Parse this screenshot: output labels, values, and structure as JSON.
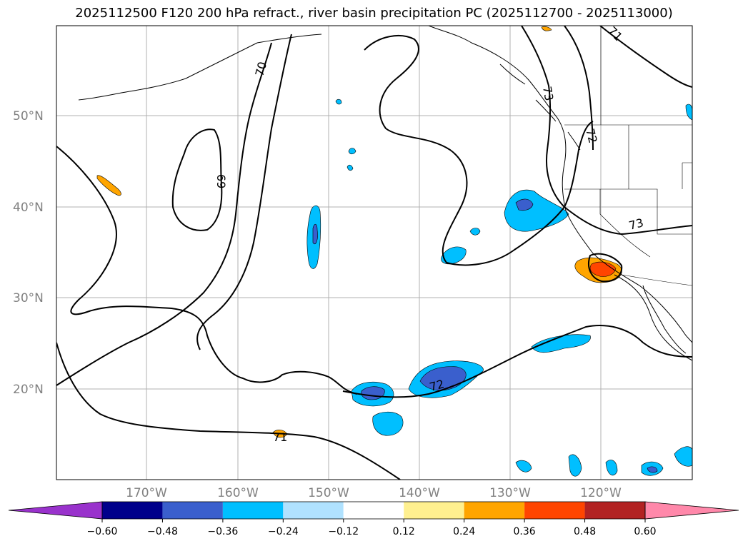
{
  "title": "2025112500 F120 200 hPa refract., river basin precipitation PC (2025112700 - 2025113000)",
  "latitudes": [
    "50°N",
    "40°N",
    "30°N",
    "20°N"
  ],
  "longitudes": [
    "170°W",
    "160°W",
    "150°W",
    "140°W",
    "130°W",
    "120°W"
  ],
  "contour_labels": [
    "70",
    "69",
    "71",
    "72",
    "73",
    "73",
    "72",
    "71"
  ],
  "colorbar": {
    "ticks": [
      "−0.60",
      "−0.48",
      "−0.36",
      "−0.24",
      "−0.12",
      "0.12",
      "0.24",
      "0.36",
      "0.48",
      "0.60"
    ],
    "colors": [
      "#9932cc",
      "#00008b",
      "#3a5fcd",
      "#00bfff",
      "#b0e2ff",
      "#ffffff",
      "#fff08f",
      "#ffa500",
      "#ff4500",
      "#b22222",
      "#ff88aa"
    ]
  }
}
